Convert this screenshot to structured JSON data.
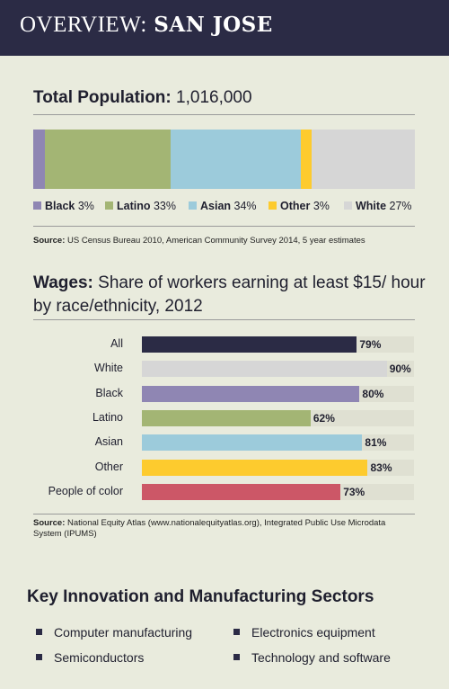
{
  "header": {
    "prefix": "OVERVIEW:",
    "city": "SAN JOSE"
  },
  "population": {
    "label": "Total Population:",
    "value": "1,016,000",
    "segments": [
      {
        "name": "Black",
        "pct": 3,
        "pct_label": "3%",
        "color": "#8f86b3"
      },
      {
        "name": "Latino",
        "pct": 33,
        "pct_label": "33%",
        "color": "#a3b574"
      },
      {
        "name": "Asian",
        "pct": 34,
        "pct_label": "34%",
        "color": "#9ccbdb"
      },
      {
        "name": "Other",
        "pct": 3,
        "pct_label": "3%",
        "color": "#fdcb2e"
      },
      {
        "name": "White",
        "pct": 27,
        "pct_label": "27%",
        "color": "#d6d6d6"
      }
    ],
    "source_label": "Source:",
    "source_text": "US Census Bureau 2010, American Community Survey 2014, 5 year estimates"
  },
  "wages": {
    "title_bold": "Wages:",
    "title_rest": "Share of workers earning at least $15/ hour by race/ethnicity, 2012",
    "source_label": "Source:",
    "source_text": "National Equity Atlas (www.nationalequityatlas.org), Integrated Public Use Microdata System (IPUMS)"
  },
  "chart_data": {
    "type": "bar",
    "title": "Share of workers earning at least $15/ hour by race/ethnicity, 2012",
    "categories": [
      "All",
      "White",
      "Black",
      "Latino",
      "Asian",
      "Other",
      "People of color"
    ],
    "values": [
      79,
      90,
      80,
      62,
      81,
      83,
      73
    ],
    "value_labels": [
      "79%",
      "90%",
      "80%",
      "62%",
      "81%",
      "83%",
      "73%"
    ],
    "colors": [
      "#2b2b45",
      "#d6d6d6",
      "#8f86b3",
      "#a3b574",
      "#9ccbdb",
      "#fdcb2e",
      "#cc5767"
    ],
    "ylim": [
      0,
      100
    ],
    "xlabel": "",
    "ylabel": ""
  },
  "sectors": {
    "title": "Key Innovation and Manufacturing Sectors",
    "items": [
      "Computer manufacturing",
      "Electronics equipment",
      "Semiconductors",
      "Technology and software"
    ]
  }
}
